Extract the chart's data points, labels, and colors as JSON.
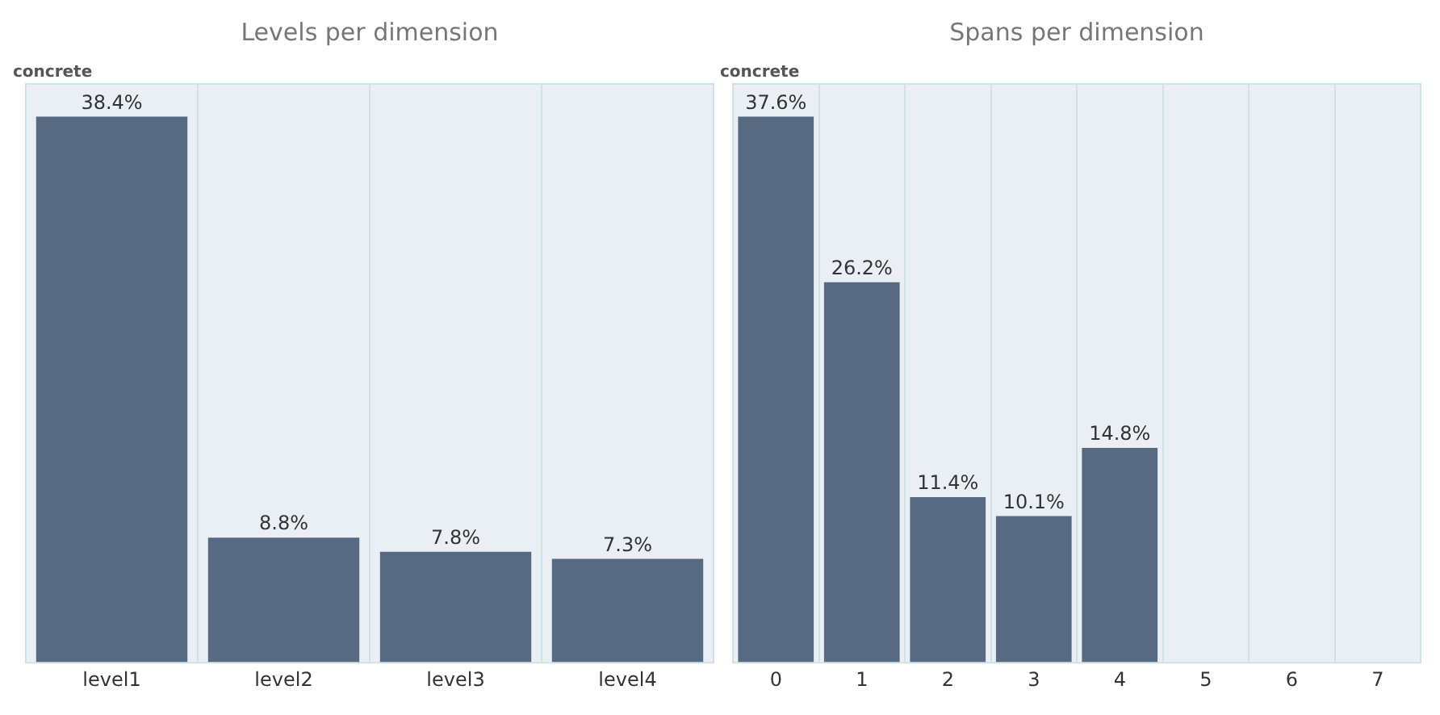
{
  "chart_data": [
    {
      "type": "bar",
      "title": "Levels per dimension",
      "categories": [
        "level1",
        "level2",
        "level3",
        "level4"
      ],
      "values": [
        38.4,
        8.8,
        7.8,
        7.3
      ],
      "value_labels": [
        "38.4%",
        "8.8%",
        "7.8%",
        "7.3%"
      ],
      "color": "#576a82",
      "grid": "x",
      "annotations": [
        "concrete"
      ]
    },
    {
      "type": "bar",
      "title": "Spans per dimension",
      "categories": [
        "0",
        "1",
        "2",
        "3",
        "4",
        "5",
        "6",
        "7"
      ],
      "values": [
        37.6,
        26.2,
        11.4,
        10.1,
        14.8,
        null,
        null,
        null
      ],
      "value_labels": [
        "37.6%",
        "26.2%",
        "11.4%",
        "10.1%",
        "14.8%",
        null,
        null,
        null
      ],
      "color": "#576a82",
      "grid": "x",
      "annotations": [
        "concrete"
      ]
    }
  ]
}
